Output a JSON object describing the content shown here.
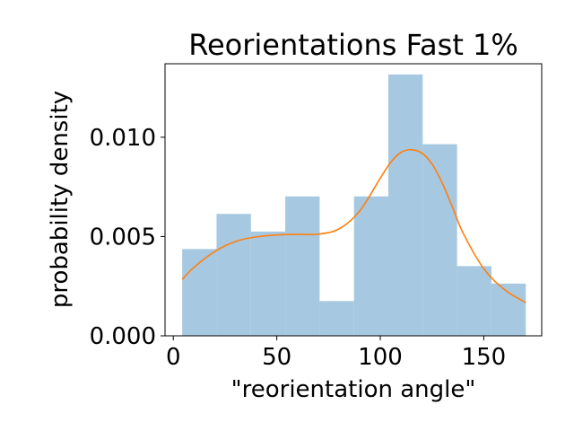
{
  "chart_data": {
    "type": "bar",
    "title": "Reorientations Fast 1%",
    "xlabel": "\"reorientation angle\"",
    "ylabel": "probability density",
    "xlim": [
      -4,
      178
    ],
    "ylim": [
      0,
      0.0137
    ],
    "x_ticks": [
      0,
      50,
      100,
      150
    ],
    "x_tick_labels": [
      "0",
      "50",
      "100",
      "150"
    ],
    "y_ticks": [
      0,
      0.005,
      0.01
    ],
    "y_tick_labels": [
      "0.000",
      "0.005",
      "0.010"
    ],
    "grid": false,
    "bins": [
      {
        "x0": 4.3,
        "x1": 20.9,
        "value": 0.00437
      },
      {
        "x0": 20.9,
        "x1": 37.5,
        "value": 0.00614
      },
      {
        "x0": 37.5,
        "x1": 54.1,
        "value": 0.00525
      },
      {
        "x0": 54.1,
        "x1": 70.7,
        "value": 0.00702
      },
      {
        "x0": 70.7,
        "x1": 87.3,
        "value": 0.00175
      },
      {
        "x0": 87.3,
        "x1": 103.9,
        "value": 0.00702
      },
      {
        "x0": 103.9,
        "x1": 120.5,
        "value": 0.01316
      },
      {
        "x0": 120.5,
        "x1": 137.1,
        "value": 0.00965
      },
      {
        "x0": 137.1,
        "x1": 153.7,
        "value": 0.00351
      },
      {
        "x0": 153.7,
        "x1": 170.3,
        "value": 0.00263
      }
    ],
    "kde": {
      "x": [
        4.3,
        10,
        20,
        30,
        40,
        50,
        60,
        70,
        80,
        90,
        100,
        105,
        110,
        115,
        120,
        125,
        130,
        135,
        140,
        150,
        160,
        170.3
      ],
      "y": [
        0.00284,
        0.00345,
        0.00424,
        0.00475,
        0.00498,
        0.00508,
        0.00511,
        0.00512,
        0.00538,
        0.00628,
        0.00794,
        0.00873,
        0.00924,
        0.00937,
        0.00921,
        0.00865,
        0.00768,
        0.00645,
        0.00518,
        0.00338,
        0.00233,
        0.00167
      ]
    },
    "colors": {
      "bars": "#a6c8e1",
      "kde": "#ff7f0e"
    }
  }
}
